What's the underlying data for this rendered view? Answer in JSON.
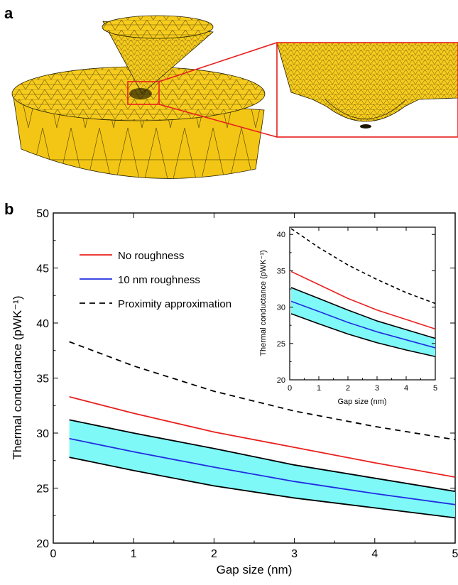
{
  "panel_a": {
    "label": "a"
  },
  "panel_b": {
    "label": "b"
  },
  "chart_data": [
    {
      "type": "line",
      "title": "",
      "xlabel": "Gap size (nm)",
      "ylabel": "Thermal conductance (pWK⁻¹)",
      "xlim": [
        0,
        5
      ],
      "ylim": [
        20,
        50
      ],
      "xticks": [
        "0",
        "1",
        "2",
        "3",
        "4",
        "5"
      ],
      "yticks": [
        "20",
        "25",
        "30",
        "35",
        "40",
        "45",
        "50"
      ],
      "legend": {
        "placement": "top-left",
        "entries": [
          {
            "label": "No roughness",
            "color": "#e8201e",
            "style": "solid"
          },
          {
            "label": "10 nm roughness",
            "color": "#1f2ee0",
            "style": "solid"
          },
          {
            "label": "Proximity approximation",
            "color": "#000000",
            "style": "dashed"
          }
        ]
      },
      "x": [
        0.2,
        1,
        2,
        3,
        4,
        5
      ],
      "series": [
        {
          "name": "No roughness",
          "color": "#e8201e",
          "style": "solid",
          "values": [
            33.3,
            31.8,
            30.1,
            28.7,
            27.3,
            26.0
          ]
        },
        {
          "name": "10 nm roughness",
          "color": "#1f2ee0",
          "style": "solid",
          "values": [
            29.5,
            28.3,
            26.9,
            25.6,
            24.5,
            23.5
          ]
        },
        {
          "name": "Proximity approximation",
          "color": "#000000",
          "style": "dashed",
          "values": [
            38.3,
            36.1,
            33.8,
            32.0,
            30.6,
            29.4
          ]
        }
      ],
      "band": {
        "color": "#7ff8f8",
        "upper": [
          31.2,
          30.0,
          28.6,
          27.1,
          25.9,
          24.7
        ],
        "lower": [
          27.8,
          26.6,
          25.2,
          24.1,
          23.2,
          22.3
        ]
      }
    },
    {
      "type": "line",
      "title": "",
      "placement": "inset",
      "xlabel": "Gap size (nm)",
      "ylabel": "Thermal conductance (pWK⁻¹)",
      "xlim": [
        0,
        5
      ],
      "ylim": [
        20,
        41
      ],
      "xticks": [
        "0",
        "1",
        "2",
        "3",
        "4",
        "5"
      ],
      "yticks": [
        "20",
        "25",
        "30",
        "35",
        "40"
      ],
      "x": [
        0.05,
        1,
        2,
        3,
        4,
        5
      ],
      "series": [
        {
          "name": "No roughness",
          "color": "#e8201e",
          "style": "solid",
          "values": [
            34.9,
            33.1,
            31.2,
            29.6,
            28.3,
            27.0
          ]
        },
        {
          "name": "10 nm roughness",
          "color": "#1f2ee0",
          "style": "solid",
          "values": [
            30.8,
            29.4,
            27.9,
            26.6,
            25.5,
            24.4
          ]
        },
        {
          "name": "Proximity approximation",
          "color": "#000000",
          "style": "dashed",
          "values": [
            40.8,
            38.2,
            35.8,
            33.8,
            32.0,
            30.5
          ]
        }
      ],
      "band": {
        "color": "#7ff8f8",
        "upper": [
          32.7,
          31.2,
          29.6,
          28.1,
          26.9,
          25.7
        ],
        "lower": [
          29.1,
          27.7,
          26.3,
          25.1,
          24.1,
          23.2
        ]
      }
    }
  ]
}
